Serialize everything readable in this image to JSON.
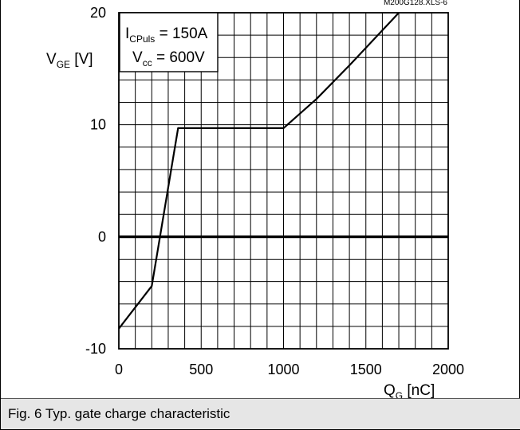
{
  "figure": {
    "file_id": "M200G128.XLS-6",
    "caption": "Fig. 6 Typ. gate charge characteristic"
  },
  "chart_data": {
    "type": "line",
    "title": "",
    "xlabel": {
      "main": "Q",
      "sub": "G",
      "unit": " [nC]"
    },
    "ylabel": {
      "main": "V",
      "sub": "GE",
      "unit": " [V]"
    },
    "xlim": [
      0,
      2000
    ],
    "ylim": [
      -10,
      20
    ],
    "x_ticks": [
      {
        "value": 0,
        "label": "0"
      },
      {
        "value": 500,
        "label": "500"
      },
      {
        "value": 1000,
        "label": "1000"
      },
      {
        "value": 1500,
        "label": "1500"
      },
      {
        "value": 2000,
        "label": "2000"
      }
    ],
    "y_ticks": [
      {
        "value": -10,
        "label": "-10"
      },
      {
        "value": 0,
        "label": "0"
      },
      {
        "value": 10,
        "label": "10"
      },
      {
        "value": 20,
        "label": "20"
      }
    ],
    "grid": true,
    "grid_x_step": 100,
    "grid_y_step": 2,
    "zero_line": true,
    "annotation": [
      {
        "main": "I",
        "sub": "CPuls",
        "rest": " = 150A"
      },
      {
        "main": "V",
        "sub": "cc",
        "rest": " = 600V"
      }
    ],
    "series": [
      {
        "x": [
          0,
          200,
          360,
          1000,
          1200,
          1400,
          1700
        ],
        "y": [
          -8.2,
          -4.4,
          9.7,
          9.7,
          12.3,
          15.3,
          20
        ]
      }
    ]
  }
}
